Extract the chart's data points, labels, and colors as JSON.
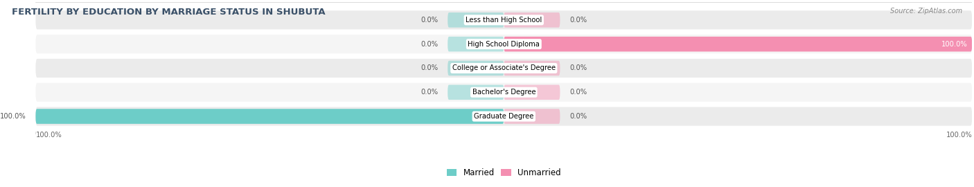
{
  "title": "FERTILITY BY EDUCATION BY MARRIAGE STATUS IN SHUBUTA",
  "source": "Source: ZipAtlas.com",
  "categories": [
    "Less than High School",
    "High School Diploma",
    "College or Associate's Degree",
    "Bachelor's Degree",
    "Graduate Degree"
  ],
  "married": [
    0.0,
    0.0,
    0.0,
    0.0,
    100.0
  ],
  "unmarried": [
    0.0,
    100.0,
    0.0,
    0.0,
    0.0
  ],
  "married_color": "#6dcdc8",
  "unmarried_color": "#f48fb1",
  "row_bg_color": "#ebebeb",
  "row_bg_color2": "#f5f5f5",
  "max_val": 100.0,
  "stub_val": 12.0,
  "label_fontsize": 7.2,
  "title_fontsize": 9.5,
  "source_fontsize": 7,
  "legend_fontsize": 8.5,
  "bar_height": 0.62,
  "figsize": [
    14.06,
    2.7
  ],
  "dpi": 100
}
